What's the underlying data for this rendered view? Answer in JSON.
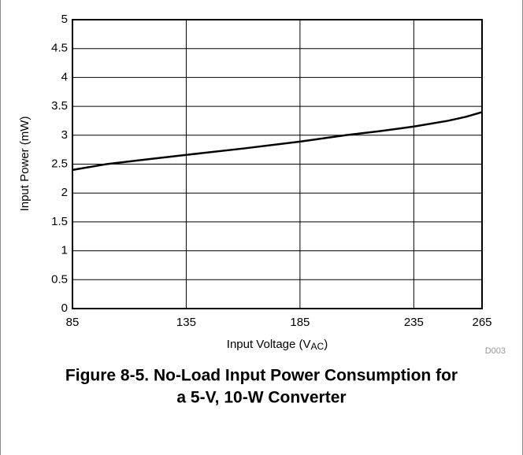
{
  "chart_data": {
    "type": "line",
    "ylabel": "Input Power (mW)",
    "xlabel_parts": [
      "Input Voltage (V",
      "AC",
      ")"
    ],
    "note": "D003",
    "caption": [
      "Figure 8-5. No-Load Input Power Consumption for",
      "a 5-V, 10-W Converter"
    ],
    "x": [
      85,
      100,
      115,
      135,
      160,
      185,
      205,
      220,
      235,
      250,
      258,
      265
    ],
    "series": [
      {
        "name": "Input Power",
        "color": "#000000",
        "values": [
          2.4,
          2.5,
          2.57,
          2.66,
          2.77,
          2.89,
          3.0,
          3.07,
          3.15,
          3.25,
          3.32,
          3.4
        ]
      }
    ],
    "xlim": [
      85,
      265
    ],
    "xticks": [
      85,
      135,
      185,
      235,
      265
    ],
    "ylim": [
      0,
      5
    ],
    "yticks": [
      0,
      0.5,
      1,
      1.5,
      2,
      2.5,
      3,
      3.5,
      4,
      4.5,
      5
    ],
    "grid": true
  }
}
